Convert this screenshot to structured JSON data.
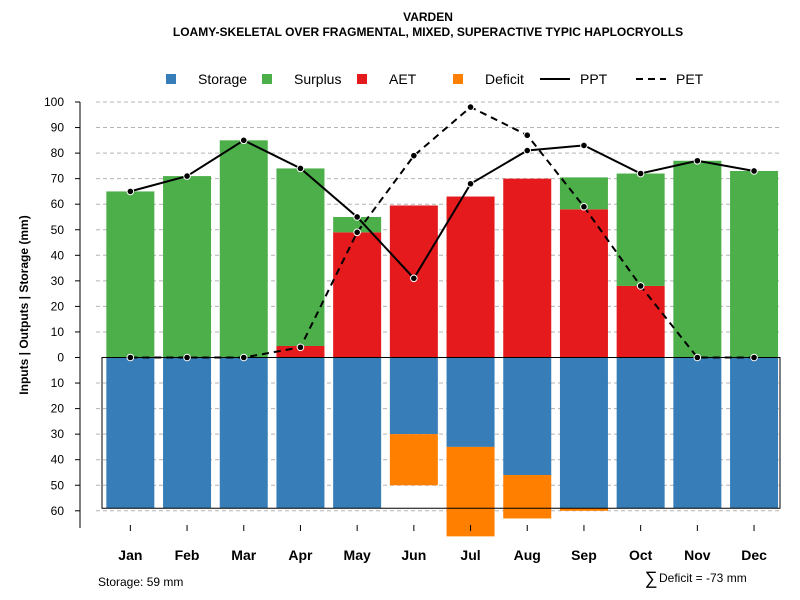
{
  "chart_data": {
    "type": "bar",
    "title": "VARDEN",
    "subtitle": "LOAMY-SKELETAL OVER FRAGMENTAL, MIXED, SUPERACTIVE TYPIC HAPLOCRYOLLS",
    "ylabel": "Inputs | Outputs | Storage     (mm)",
    "ylim": [
      -60,
      100
    ],
    "ticks_up": [
      0,
      10,
      20,
      30,
      40,
      50,
      60,
      70,
      80,
      90,
      100
    ],
    "ticks_down": [
      10,
      20,
      30,
      40,
      50,
      60
    ],
    "categories": [
      "Jan",
      "Feb",
      "Mar",
      "Apr",
      "May",
      "Jun",
      "Jul",
      "Aug",
      "Sep",
      "Oct",
      "Nov",
      "Dec"
    ],
    "series": [
      {
        "name": "Storage",
        "color": "#377EB8",
        "values": [
          59,
          59,
          59,
          59,
          59,
          30,
          35,
          46,
          59,
          59,
          59,
          59
        ]
      },
      {
        "name": "Surplus",
        "color": "#4DAF4A",
        "values": [
          65,
          71,
          85,
          69.5,
          6,
          0,
          0,
          0,
          12.5,
          44,
          77,
          73
        ]
      },
      {
        "name": "AET",
        "color": "#E41A1C",
        "values": [
          0,
          0,
          0,
          4.5,
          49,
          59.5,
          63,
          70,
          58,
          28,
          0,
          0
        ]
      },
      {
        "name": "Deficit",
        "color": "#FF7F00",
        "values": [
          0,
          0,
          0,
          0,
          0,
          20,
          35,
          17,
          1,
          0,
          0,
          0
        ]
      },
      {
        "name": "PPT",
        "color": "#000000",
        "style": "solid",
        "values": [
          65,
          71,
          85,
          74,
          55,
          31,
          68,
          81,
          83,
          72,
          77,
          73
        ]
      },
      {
        "name": "PET",
        "color": "#000000",
        "style": "dashed",
        "values": [
          0,
          0,
          0,
          4,
          49,
          79,
          98,
          87,
          59,
          28,
          0,
          0
        ]
      }
    ],
    "storage_capacity": 59,
    "grid": true,
    "legend": "top"
  },
  "footer": {
    "storage": "Storage: 59 mm",
    "deficit_symbol": "∑",
    "deficit": "Deficit = -73 mm"
  }
}
